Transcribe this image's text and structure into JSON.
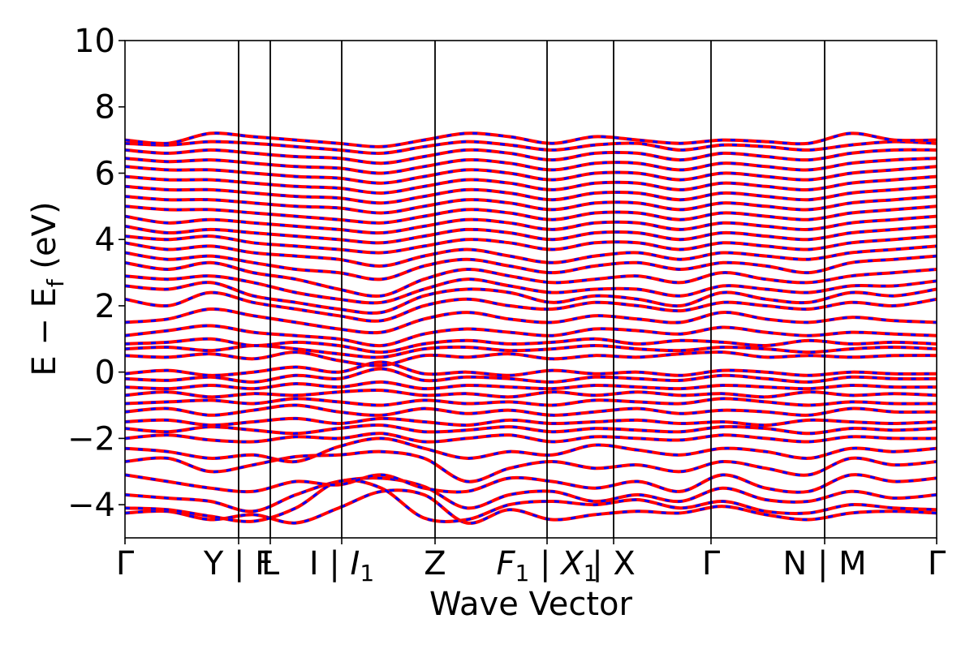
{
  "chart_data": {
    "type": "line",
    "title": "",
    "xlabel": "Wave Vector",
    "ylabel": "E − E_f (eV)",
    "ylabel_parts": {
      "main": "E − E",
      "subscript": "f",
      "unit": "(eV)"
    },
    "ylim": [
      -5,
      10
    ],
    "yticks": [
      10,
      8,
      6,
      4,
      2,
      0,
      -2,
      -4
    ],
    "ytick_labels": [
      "10",
      "8",
      "6",
      "4",
      "2",
      "0",
      "−2",
      "−4"
    ],
    "xlim": [
      0,
      1
    ],
    "kpoint_positions": [
      0.0,
      0.14,
      0.179,
      0.267,
      0.382,
      0.52,
      0.602,
      0.722,
      0.862,
      1.0
    ],
    "kpoint_labels": [
      "Γ",
      "Y | F",
      "L",
      "I | I₁",
      "Z",
      "F₁ | X₁",
      "X",
      "Γ",
      "N | M",
      "Γ"
    ],
    "kpoint_label_parts": [
      [
        {
          "t": "Γ"
        }
      ],
      [
        {
          "t": "Y | F"
        }
      ],
      [
        {
          "t": "L"
        }
      ],
      [
        {
          "t": "I | "
        },
        {
          "t": "I",
          "italic": true
        },
        {
          "t": "1",
          "sub": true
        }
      ],
      [
        {
          "t": "Z"
        }
      ],
      [
        {
          "t": "F",
          "italic": true
        },
        {
          "t": "1",
          "sub": true
        },
        {
          "t": " | "
        },
        {
          "t": "X",
          "italic": true
        },
        {
          "t": "1",
          "sub": true
        }
      ],
      [
        {
          "t": " | X"
        }
      ],
      [
        {
          "t": "Γ"
        }
      ],
      [
        {
          "t": "N | M"
        }
      ],
      [
        {
          "t": "Γ"
        }
      ]
    ],
    "series": [
      {
        "name": "",
        "color": "#ff0000",
        "style": "solid"
      },
      {
        "name": "",
        "color": "#0000ff",
        "style": "dashed"
      }
    ],
    "bands": [
      {
        "anchors": [
          -4.25,
          -4.2,
          -4.45,
          -4.3,
          -4.55,
          -4.1,
          -3.6,
          -3.7,
          -4.55,
          -4.15,
          -4.45,
          -4.3,
          -4.2,
          -4.25,
          -4.05,
          -4.3,
          -4.45,
          -4.25,
          -4.2,
          -4.25
        ]
      },
      {
        "anchors": [
          -4.1,
          -4.15,
          -4.35,
          -4.5,
          -4.1,
          -3.3,
          -3.5,
          -4.4,
          -4.45,
          -4.0,
          -3.9,
          -4.0,
          -3.85,
          -4.1,
          -3.9,
          -4.2,
          -4.25,
          -4.0,
          -4.1,
          -4.15
        ]
      },
      {
        "anchors": [
          -3.7,
          -3.8,
          -3.9,
          -4.2,
          -3.7,
          -3.3,
          -3.2,
          -3.45,
          -4.1,
          -3.7,
          -3.6,
          -3.9,
          -3.7,
          -3.9,
          -3.5,
          -3.85,
          -3.9,
          -3.6,
          -3.8,
          -3.7
        ]
      },
      {
        "anchors": [
          -3.1,
          -3.3,
          -3.5,
          -3.6,
          -3.3,
          -3.4,
          -3.1,
          -3.5,
          -3.6,
          -3.2,
          -3.3,
          -3.5,
          -3.3,
          -3.6,
          -3.1,
          -3.5,
          -3.6,
          -3.1,
          -3.3,
          -3.2
        ]
      },
      {
        "anchors": [
          -2.7,
          -2.6,
          -3.0,
          -2.8,
          -2.55,
          -2.5,
          -2.4,
          -2.6,
          -3.3,
          -2.9,
          -2.7,
          -2.9,
          -2.8,
          -3.0,
          -2.7,
          -2.9,
          -3.1,
          -2.6,
          -2.8,
          -2.7
        ]
      },
      {
        "anchors": [
          -2.3,
          -2.4,
          -2.6,
          -2.5,
          -2.7,
          -2.25,
          -2.0,
          -2.3,
          -2.6,
          -2.4,
          -2.5,
          -2.2,
          -2.35,
          -2.5,
          -2.3,
          -2.4,
          -2.6,
          -2.3,
          -2.4,
          -2.3
        ]
      },
      {
        "anchors": [
          -2.0,
          -1.9,
          -2.05,
          -2.1,
          -1.95,
          -2.0,
          -1.85,
          -2.1,
          -2.0,
          -1.9,
          -2.1,
          -1.95,
          -2.0,
          -2.05,
          -1.9,
          -2.0,
          -2.1,
          -1.95,
          -2.0,
          -2.0
        ]
      },
      {
        "anchors": [
          -1.7,
          -1.8,
          -1.65,
          -1.75,
          -1.85,
          -1.7,
          -1.6,
          -1.8,
          -1.75,
          -1.65,
          -1.8,
          -1.7,
          -1.75,
          -1.8,
          -1.65,
          -1.7,
          -1.85,
          -1.7,
          -1.75,
          -1.7
        ]
      },
      {
        "anchors": [
          -1.5,
          -1.45,
          -1.6,
          -1.5,
          -1.4,
          -1.55,
          -1.4,
          -1.5,
          -1.6,
          -1.45,
          -1.55,
          -1.5,
          -1.45,
          -1.55,
          -1.5,
          -1.6,
          -1.45,
          -1.5,
          -1.55,
          -1.5
        ]
      },
      {
        "anchors": [
          -1.2,
          -1.1,
          -1.3,
          -1.15,
          -1.0,
          -1.2,
          -1.3,
          -1.1,
          -1.25,
          -1.15,
          -1.3,
          -1.2,
          -1.1,
          -1.25,
          -1.15,
          -1.2,
          -1.3,
          -1.1,
          -1.2,
          -1.2
        ]
      },
      {
        "anchors": [
          -0.95,
          -0.9,
          -0.85,
          -0.95,
          -0.8,
          -0.9,
          -1.0,
          -0.85,
          -0.95,
          -0.9,
          -1.0,
          -0.85,
          -0.9,
          -0.95,
          -0.8,
          -0.9,
          -1.0,
          -0.9,
          -0.95,
          -0.95
        ]
      },
      {
        "anchors": [
          -0.7,
          -0.6,
          -0.75,
          -0.65,
          -0.7,
          -0.6,
          -0.55,
          -0.7,
          -0.65,
          -0.75,
          -0.6,
          -0.7,
          -0.6,
          -0.7,
          -0.65,
          -0.75,
          -0.6,
          -0.7,
          -0.65,
          -0.7
        ]
      },
      {
        "anchors": [
          -0.45,
          -0.5,
          -0.4,
          -0.5,
          -0.35,
          -0.45,
          -0.3,
          -0.5,
          -0.4,
          -0.45,
          -0.5,
          -0.4,
          -0.45,
          -0.5,
          -0.4,
          -0.45,
          -0.5,
          -0.4,
          -0.45,
          -0.45
        ]
      },
      {
        "anchors": [
          -0.2,
          -0.25,
          -0.15,
          -0.3,
          -0.1,
          -0.2,
          0.1,
          -0.25,
          -0.15,
          -0.2,
          -0.3,
          -0.15,
          -0.2,
          -0.25,
          -0.1,
          -0.2,
          -0.3,
          -0.15,
          -0.2,
          -0.2
        ]
      },
      {
        "anchors": [
          -0.05,
          0.05,
          -0.1,
          0.0,
          0.15,
          0.0,
          0.3,
          -0.05,
          0.0,
          -0.1,
          0.05,
          -0.05,
          0.0,
          -0.1,
          0.05,
          0.0,
          -0.1,
          0.0,
          -0.05,
          -0.05
        ]
      },
      {
        "anchors": [
          0.5,
          0.45,
          0.55,
          0.4,
          0.6,
          0.35,
          0.2,
          0.5,
          0.45,
          0.55,
          0.4,
          0.5,
          0.45,
          0.55,
          0.6,
          0.45,
          0.5,
          0.45,
          0.5,
          0.5
        ]
      },
      {
        "anchors": [
          0.7,
          0.75,
          0.65,
          0.8,
          0.7,
          0.55,
          0.45,
          0.7,
          0.75,
          0.65,
          0.7,
          0.8,
          0.7,
          0.65,
          0.75,
          0.7,
          0.6,
          0.7,
          0.75,
          0.7
        ]
      },
      {
        "anchors": [
          0.85,
          0.9,
          1.0,
          0.8,
          0.9,
          0.8,
          0.6,
          0.85,
          0.95,
          0.85,
          0.9,
          1.0,
          0.85,
          0.95,
          0.9,
          0.8,
          0.95,
          0.85,
          0.9,
          0.85
        ]
      },
      {
        "anchors": [
          1.1,
          1.25,
          1.4,
          1.2,
          1.1,
          1.0,
          0.8,
          1.15,
          1.3,
          1.2,
          1.1,
          1.3,
          1.25,
          1.15,
          1.35,
          1.2,
          1.1,
          1.2,
          1.15,
          1.1
        ]
      },
      {
        "anchors": [
          1.5,
          1.6,
          1.9,
          1.7,
          1.5,
          1.3,
          1.2,
          1.6,
          1.8,
          1.6,
          1.5,
          1.7,
          1.6,
          1.5,
          1.8,
          1.6,
          1.5,
          1.65,
          1.55,
          1.5
        ]
      },
      {
        "anchors": [
          2.2,
          2.0,
          2.4,
          2.1,
          1.9,
          1.7,
          1.55,
          2.0,
          2.2,
          2.0,
          1.9,
          2.1,
          2.0,
          1.85,
          2.1,
          2.0,
          1.9,
          2.1,
          2.0,
          2.2
        ]
      },
      {
        "anchors": [
          2.6,
          2.5,
          2.7,
          2.3,
          2.1,
          1.9,
          1.8,
          2.3,
          2.5,
          2.4,
          2.1,
          2.3,
          2.2,
          2.0,
          2.4,
          2.2,
          2.1,
          2.4,
          2.3,
          2.5
        ]
      },
      {
        "anchors": [
          2.9,
          2.8,
          2.9,
          2.7,
          2.4,
          2.2,
          2.1,
          2.5,
          2.8,
          2.6,
          2.4,
          2.5,
          2.5,
          2.3,
          2.6,
          2.5,
          2.4,
          2.6,
          2.6,
          2.75
        ]
      },
      {
        "anchors": [
          3.3,
          3.1,
          3.3,
          3.0,
          2.8,
          2.5,
          2.3,
          2.8,
          3.1,
          2.9,
          2.7,
          2.8,
          2.9,
          2.7,
          3.0,
          2.8,
          2.7,
          2.9,
          3.0,
          3.1
        ]
      },
      {
        "anchors": [
          3.6,
          3.4,
          3.5,
          3.3,
          3.1,
          3.0,
          2.8,
          3.2,
          3.4,
          3.2,
          3.0,
          3.2,
          3.3,
          3.1,
          3.3,
          3.2,
          3.0,
          3.3,
          3.4,
          3.5
        ]
      },
      {
        "anchors": [
          3.9,
          3.7,
          3.8,
          3.6,
          3.5,
          3.4,
          3.2,
          3.5,
          3.7,
          3.5,
          3.3,
          3.5,
          3.6,
          3.4,
          3.6,
          3.5,
          3.4,
          3.6,
          3.7,
          3.8
        ]
      },
      {
        "anchors": [
          4.1,
          4.0,
          4.1,
          3.9,
          3.8,
          3.7,
          3.6,
          3.8,
          4.0,
          3.9,
          3.7,
          3.9,
          3.9,
          3.7,
          3.9,
          3.8,
          3.7,
          3.9,
          4.0,
          4.1
        ]
      },
      {
        "anchors": [
          4.4,
          4.2,
          4.3,
          4.2,
          4.1,
          4.0,
          3.9,
          4.1,
          4.3,
          4.2,
          4.0,
          4.2,
          4.2,
          4.0,
          4.2,
          4.1,
          4.0,
          4.2,
          4.3,
          4.4
        ]
      },
      {
        "anchors": [
          4.7,
          4.5,
          4.6,
          4.5,
          4.4,
          4.3,
          4.2,
          4.4,
          4.6,
          4.5,
          4.3,
          4.5,
          4.5,
          4.3,
          4.5,
          4.4,
          4.3,
          4.5,
          4.6,
          4.7
        ]
      },
      {
        "anchors": [
          5.0,
          4.9,
          4.9,
          4.8,
          4.7,
          4.6,
          4.5,
          4.7,
          4.9,
          4.8,
          4.6,
          4.8,
          4.8,
          4.6,
          4.8,
          4.7,
          4.6,
          4.8,
          4.9,
          5.0
        ]
      },
      {
        "anchors": [
          5.3,
          5.2,
          5.2,
          5.1,
          5.0,
          4.95,
          4.8,
          5.0,
          5.2,
          5.1,
          4.9,
          5.1,
          5.1,
          4.9,
          5.1,
          5.0,
          4.9,
          5.1,
          5.2,
          5.3
        ]
      },
      {
        "anchors": [
          5.6,
          5.5,
          5.5,
          5.4,
          5.3,
          5.25,
          5.1,
          5.3,
          5.5,
          5.4,
          5.2,
          5.4,
          5.4,
          5.2,
          5.4,
          5.3,
          5.2,
          5.4,
          5.5,
          5.6
        ]
      },
      {
        "anchors": [
          5.9,
          5.8,
          5.8,
          5.7,
          5.6,
          5.55,
          5.4,
          5.6,
          5.8,
          5.7,
          5.5,
          5.7,
          5.7,
          5.5,
          5.7,
          5.6,
          5.5,
          5.7,
          5.8,
          5.9
        ]
      },
      {
        "anchors": [
          6.2,
          6.1,
          6.1,
          6.0,
          5.9,
          5.85,
          5.7,
          5.9,
          6.1,
          6.0,
          5.8,
          6.0,
          6.0,
          5.8,
          6.0,
          5.9,
          5.8,
          6.0,
          6.1,
          6.2
        ]
      },
      {
        "anchors": [
          6.45,
          6.35,
          6.4,
          6.3,
          6.2,
          6.15,
          6.0,
          6.2,
          6.4,
          6.3,
          6.1,
          6.3,
          6.3,
          6.1,
          6.3,
          6.2,
          6.1,
          6.3,
          6.4,
          6.45
        ]
      },
      {
        "anchors": [
          6.7,
          6.6,
          6.7,
          6.6,
          6.5,
          6.45,
          6.3,
          6.5,
          6.7,
          6.6,
          6.4,
          6.6,
          6.6,
          6.4,
          6.6,
          6.5,
          6.4,
          6.6,
          6.7,
          6.7
        ]
      },
      {
        "anchors": [
          6.9,
          6.85,
          6.95,
          6.9,
          6.8,
          6.7,
          6.6,
          6.8,
          6.95,
          6.85,
          6.7,
          6.85,
          6.9,
          6.7,
          6.85,
          6.8,
          6.7,
          6.85,
          6.95,
          6.9
        ]
      },
      {
        "anchors": [
          7.0,
          6.9,
          7.2,
          7.1,
          7.0,
          6.9,
          6.8,
          7.0,
          7.2,
          7.1,
          6.9,
          7.1,
          7.0,
          6.9,
          7.0,
          6.95,
          6.9,
          7.2,
          7.0,
          7.0
        ]
      }
    ]
  }
}
